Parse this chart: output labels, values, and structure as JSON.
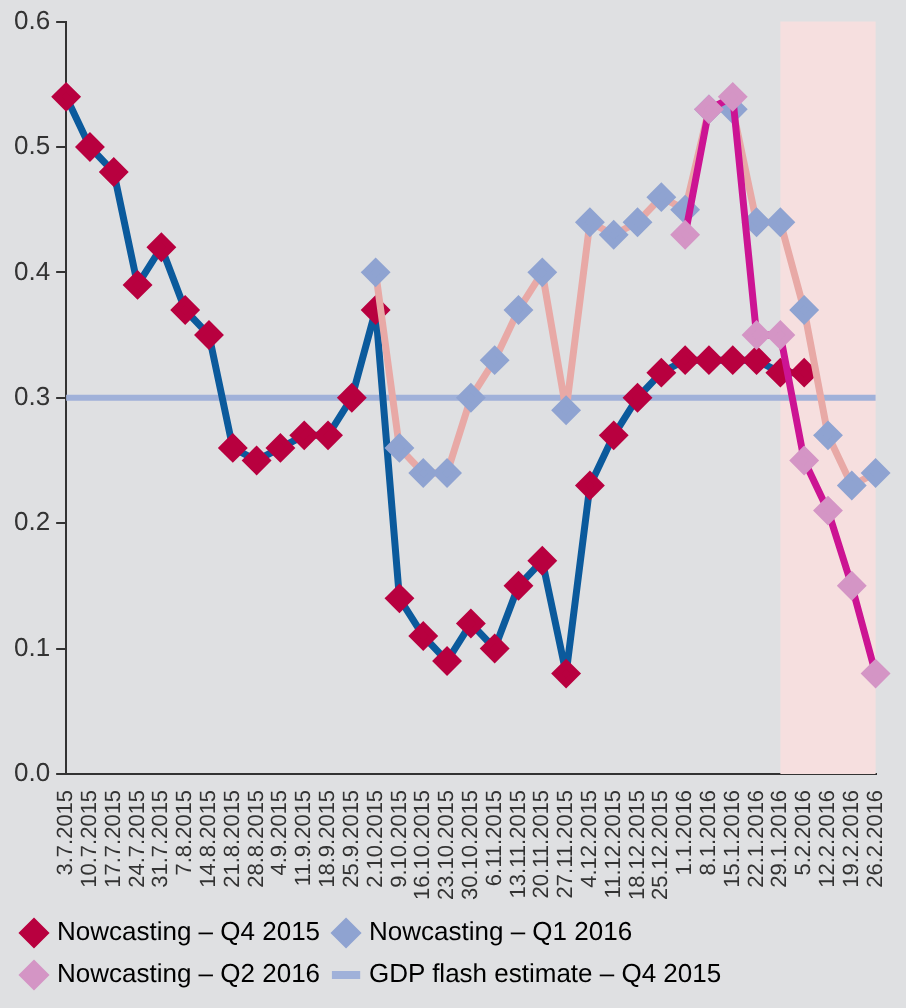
{
  "chart_data": {
    "type": "line",
    "categories": [
      "3.7.2015",
      "10.7.2015",
      "17.7.2015",
      "24.7.2015",
      "31.7.2015",
      "7.8.2015",
      "14.8.2015",
      "21.8.2015",
      "28.8.2015",
      "4.9.2015",
      "11.9.2015",
      "18.9.2015",
      "25.9.2015",
      "2.10.2015",
      "9.10.2015",
      "16.10.2015",
      "23.10.2015",
      "30.10.2015",
      "6.11.2015",
      "13.11.2015",
      "20.11.2015",
      "27.11.2015",
      "4.12.2015",
      "11.12.2015",
      "18.12.2015",
      "25.12.2015",
      "1.1.2016",
      "8.1.2016",
      "15.1.2016",
      "22.1.2016",
      "29.1.2016",
      "5.2.2016",
      "12.2.2016",
      "19.2.2016",
      "26.2.2016"
    ],
    "series": [
      {
        "name": "Nowcasting – Q4 2015",
        "color": "#0b5a9c",
        "colors": [
          "#b8003f",
          "#b8003f",
          "#b8003f",
          "#b8003f",
          "#b8003f",
          "#b8003f",
          "#b8003f",
          "#b8003f",
          "#b8003f",
          "#b8003f",
          "#b8003f",
          "#b8003f",
          "#b8003f",
          "#b8003f",
          "#b8003f",
          "#b8003f",
          "#b8003f",
          "#b8003f",
          "#b8003f",
          "#b8003f",
          "#b8003f",
          "#b8003f",
          "#b8003f",
          "#b8003f",
          "#b8003f",
          "#b8003f",
          "#b8003f",
          "#b8003f",
          "#b8003f",
          "#b8003f",
          "#b8003f",
          "#b8003f",
          "#b8003f",
          "#b8003f",
          "#b8003f"
        ],
        "values": [
          0.54,
          0.5,
          0.48,
          0.39,
          0.42,
          0.37,
          0.35,
          0.26,
          0.25,
          0.26,
          0.27,
          0.27,
          0.3,
          0.37,
          0.14,
          0.11,
          0.09,
          0.12,
          0.1,
          0.15,
          0.17,
          0.08,
          0.23,
          0.27,
          0.3,
          0.32,
          0.33,
          0.33,
          0.33,
          0.33,
          0.32,
          0.32,
          null,
          null,
          null
        ]
      },
      {
        "name": "Nowcasting – Q1 2016",
        "color": "#e8a9a6",
        "colors": [
          "#8fa3d1",
          "#8fa3d1",
          "#8fa3d1",
          "#8fa3d1",
          "#8fa3d1",
          "#8fa3d1",
          "#8fa3d1",
          "#8fa3d1",
          "#8fa3d1",
          "#8fa3d1",
          "#8fa3d1",
          "#8fa3d1",
          "#8fa3d1",
          "#8fa3d1",
          "#8fa3d1",
          "#8fa3d1",
          "#8fa3d1",
          "#8fa3d1",
          "#8fa3d1",
          "#8fa3d1",
          "#8fa3d1",
          "#8fa3d1",
          "#8fa3d1",
          "#8fa3d1",
          "#8fa3d1",
          "#8fa3d1",
          "#8fa3d1",
          "#8fa3d1",
          "#8fa3d1",
          "#8fa3d1",
          "#8fa3d1",
          "#8fa3d1",
          "#8fa3d1",
          "#8fa3d1",
          "#8fa3d1"
        ],
        "values": [
          null,
          null,
          null,
          null,
          null,
          null,
          null,
          null,
          null,
          null,
          null,
          null,
          null,
          0.4,
          0.26,
          0.24,
          0.24,
          0.3,
          0.33,
          0.37,
          0.4,
          0.29,
          0.44,
          0.43,
          0.44,
          0.46,
          0.45,
          0.53,
          0.53,
          0.44,
          0.44,
          0.37,
          0.27,
          0.23,
          0.24
        ]
      },
      {
        "name": "Nowcasting – Q2 2016",
        "color": "#cc1493",
        "colors": [
          "#d495c5",
          "#d495c5",
          "#d495c5",
          "#d495c5",
          "#d495c5",
          "#d495c5",
          "#d495c5",
          "#d495c5",
          "#d495c5",
          "#d495c5",
          "#d495c5",
          "#d495c5",
          "#d495c5",
          "#d495c5",
          "#d495c5",
          "#d495c5",
          "#d495c5",
          "#d495c5",
          "#d495c5",
          "#d495c5",
          "#d495c5",
          "#d495c5",
          "#d495c5",
          "#d495c5",
          "#d495c5",
          "#d495c5",
          "#d495c5",
          "#d495c5",
          "#d495c5",
          "#d495c5",
          "#d495c5",
          "#d495c5",
          "#d495c5",
          "#d495c5",
          "#d495c5"
        ],
        "values": [
          null,
          null,
          null,
          null,
          null,
          null,
          null,
          null,
          null,
          null,
          null,
          null,
          null,
          null,
          null,
          null,
          null,
          null,
          null,
          null,
          null,
          null,
          null,
          null,
          null,
          null,
          0.43,
          0.53,
          0.54,
          0.35,
          0.35,
          0.25,
          0.21,
          0.15,
          0.08
        ]
      }
    ],
    "ylim": [
      0,
      0.6
    ],
    "yticks": [
      {
        "value": 0,
        "label": "0.0"
      },
      {
        "value": 0.1,
        "label": "0.1"
      },
      {
        "value": 0.2,
        "label": "0.2"
      },
      {
        "value": 0.3,
        "label": "0.3"
      },
      {
        "value": 0.4,
        "label": "0.4"
      },
      {
        "value": 0.5,
        "label": "0.5"
      },
      {
        "value": 0.6,
        "label": "0.6"
      }
    ],
    "ref_lines": [
      {
        "axis": "y",
        "value": 0.3,
        "label": "GDP flash estimate – Q4 2015",
        "color": "#a0b1d9"
      }
    ],
    "bands": [
      {
        "axis": "x",
        "from": "29.1.2016",
        "to": "26.2.2016",
        "color": "#f6dfdf"
      }
    ],
    "marker": "diamond",
    "grid": false,
    "legend": "bottom"
  }
}
